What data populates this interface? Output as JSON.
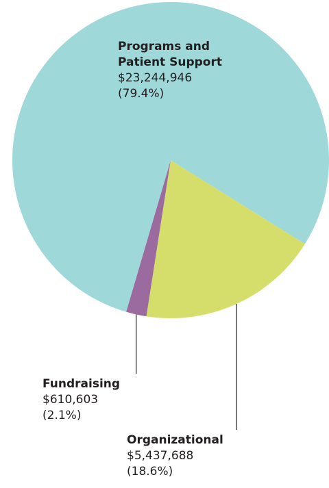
{
  "chart_data": {
    "type": "pie",
    "slices": [
      {
        "label": "Programs and Patient Support",
        "label_lines": [
          "Programs and",
          "Patient Support"
        ],
        "amount": "$23,244,946",
        "percent_text": "(79.4%)",
        "value": 23244946,
        "percent": 79.4,
        "color": "#9ed8d9"
      },
      {
        "label": "Organizational",
        "label_lines": [
          "Organizational"
        ],
        "amount": "$5,437,688",
        "percent_text": "(18.6%)",
        "value": 5437688,
        "percent": 18.6,
        "color": "#d5de6b"
      },
      {
        "label": "Fundraising",
        "label_lines": [
          "Fundraising"
        ],
        "amount": "$610,603",
        "percent_text": "(2.1%)",
        "value": 610603,
        "percent": 2.1,
        "color": "#9b6ba0"
      }
    ]
  }
}
